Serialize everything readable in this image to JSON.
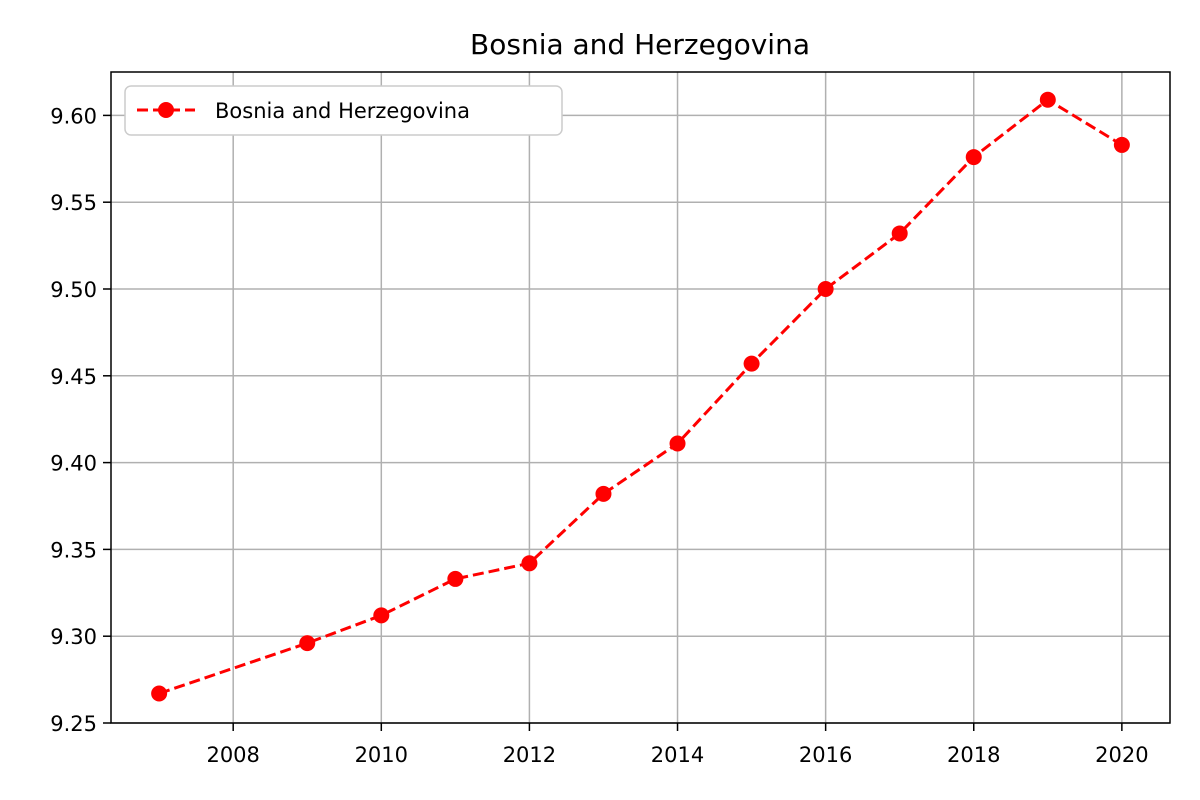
{
  "chart_data": {
    "type": "line",
    "title": "Bosnia and Herzegovina",
    "xlabel": "",
    "ylabel": "",
    "xlim": [
      2006.35,
      2020.65
    ],
    "ylim": [
      9.25,
      9.625
    ],
    "x_ticks": [
      "2008",
      "2010",
      "2012",
      "2014",
      "2016",
      "2018",
      "2020"
    ],
    "y_ticks": [
      "9.25",
      "9.30",
      "9.35",
      "9.40",
      "9.45",
      "9.50",
      "9.55",
      "9.60"
    ],
    "grid": true,
    "legend": {
      "position": "top-left",
      "entries": [
        "Bosnia and Herzegovina"
      ]
    },
    "series": [
      {
        "name": "Bosnia and Herzegovina",
        "color": "#ff0000",
        "line_style": "dashed",
        "marker": "circle",
        "x": [
          2007,
          2009,
          2010,
          2011,
          2012,
          2013,
          2014,
          2015,
          2016,
          2017,
          2018,
          2019,
          2020
        ],
        "y": [
          9.267,
          9.296,
          9.312,
          9.333,
          9.342,
          9.382,
          9.411,
          9.457,
          9.5,
          9.532,
          9.576,
          9.609,
          9.583
        ]
      }
    ]
  }
}
